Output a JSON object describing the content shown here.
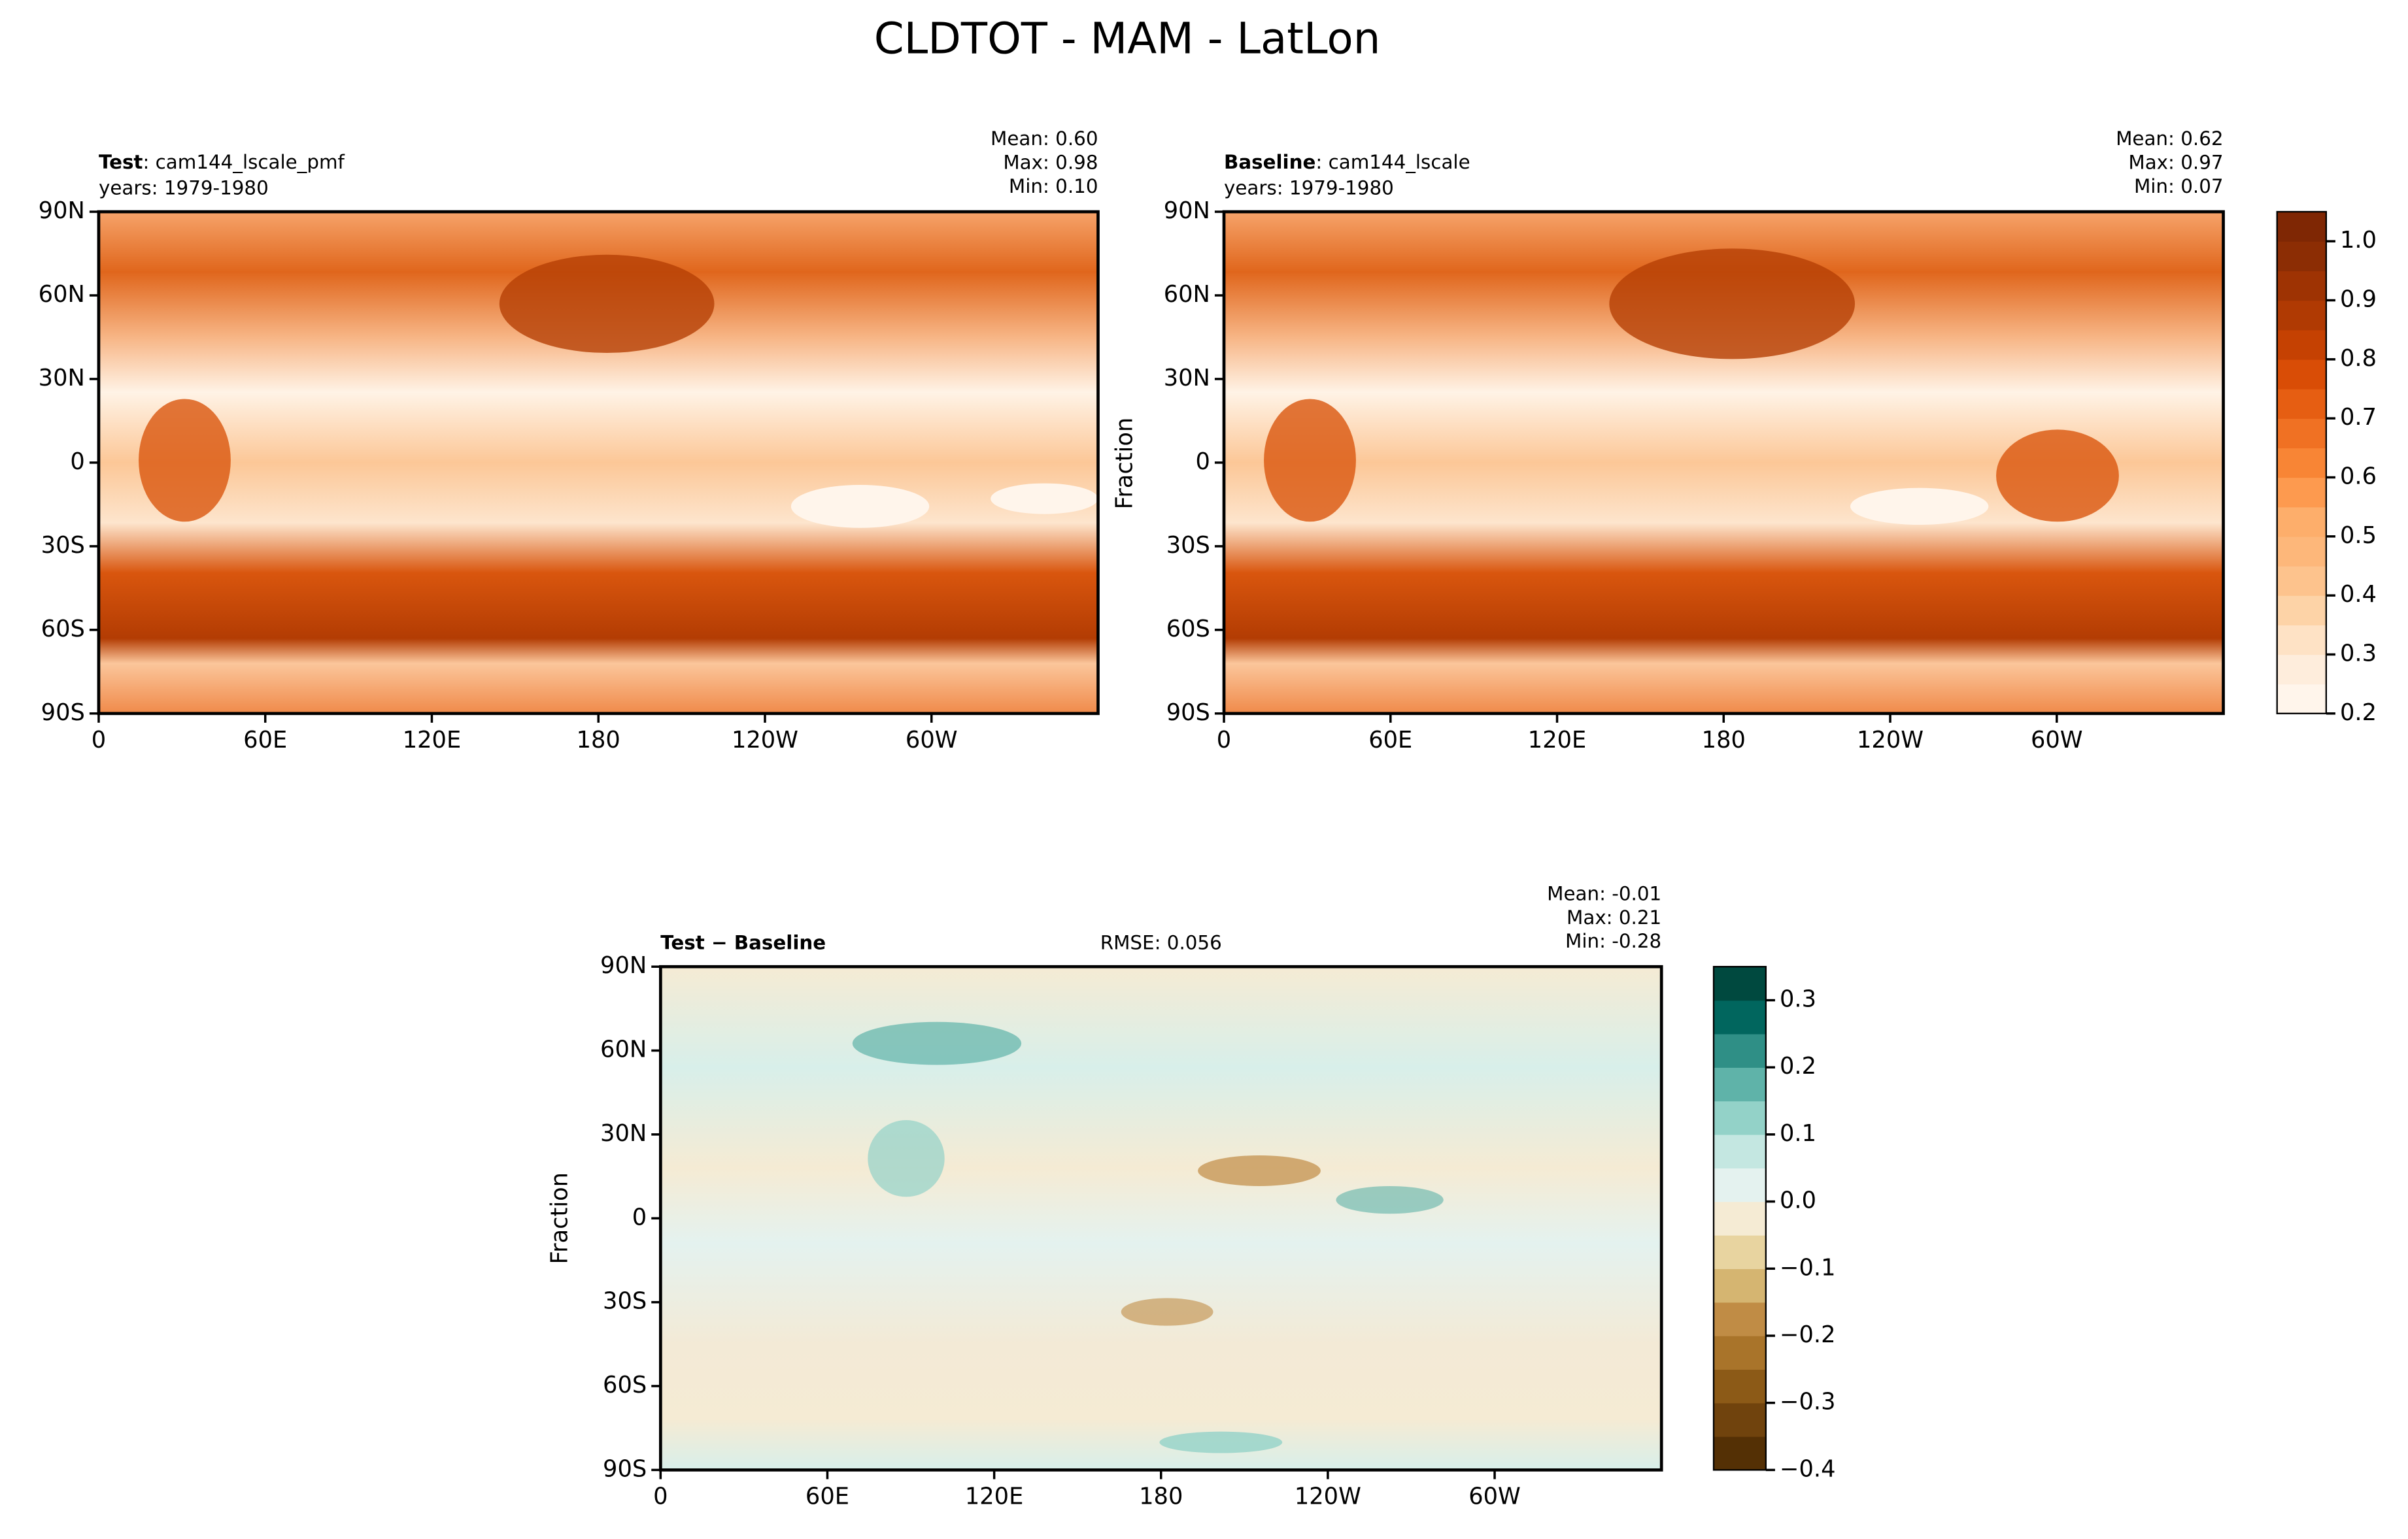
{
  "title": "CLDTOT - MAM - LatLon",
  "panels": [
    {
      "name": "Test",
      "run": ": cam144_lscale_pmf",
      "years": "years: 1979-1980",
      "stats": [
        "Mean:  0.60",
        "Max:  0.98",
        "Min:  0.10"
      ]
    },
    {
      "name": "Baseline",
      "run": ": cam144_lscale",
      "years": "years: 1979-1980",
      "stats": [
        "Mean:  0.62",
        "Max:  0.97",
        "Min:  0.07"
      ]
    }
  ],
  "diff": {
    "name": "Test − Baseline",
    "rmse": "RMSE: 0.056",
    "stats": [
      "Mean: -0.01",
      "Max:  0.21",
      "Min: -0.28"
    ]
  },
  "lat_ticks": [
    "90N",
    "60N",
    "30N",
    "0",
    "30S",
    "60S",
    "90S"
  ],
  "lon_ticks": [
    "0",
    "60E",
    "120E",
    "180",
    "120W",
    "60W"
  ],
  "colorbar1": {
    "label": "Fraction",
    "lim": [
      0.2,
      1.05
    ],
    "ticks": [
      {
        "value": 0.2,
        "label": "0.2"
      },
      {
        "value": 0.3,
        "label": "0.3"
      },
      {
        "value": 0.4,
        "label": "0.4"
      },
      {
        "value": 0.5,
        "label": "0.5"
      },
      {
        "value": 0.6,
        "label": "0.6"
      },
      {
        "value": 0.7,
        "label": "0.7"
      },
      {
        "value": 0.8,
        "label": "0.8"
      },
      {
        "value": 0.9,
        "label": "0.9"
      },
      {
        "value": 1,
        "label": "1.0"
      }
    ],
    "colors": [
      "#fff5eb",
      "#feeddc",
      "#fee2c5",
      "#fdd3a7",
      "#fdc38d",
      "#fdb77a",
      "#fdae6b",
      "#fd9a4f",
      "#f88535",
      "#f07123",
      "#e65e12",
      "#d94d06",
      "#c54102",
      "#b03a03",
      "#9e3303",
      "#8c2d04",
      "#7f2704"
    ]
  },
  "colorbar2": {
    "label": "Fraction",
    "lim": [
      -0.4,
      0.35
    ],
    "ticks": [
      {
        "value": -0.4,
        "label": "−0.4"
      },
      {
        "value": -0.3,
        "label": "−0.3"
      },
      {
        "value": -0.2,
        "label": "−0.2"
      },
      {
        "value": -0.1,
        "label": "−0.1"
      },
      {
        "value": 0,
        "label": "0.0"
      },
      {
        "value": 0.1,
        "label": "0.1"
      },
      {
        "value": 0.2,
        "label": "0.2"
      },
      {
        "value": 0.3,
        "label": "0.3"
      }
    ],
    "colors": [
      "#543005",
      "#70430d",
      "#8c5a17",
      "#a9742a",
      "#c08c45",
      "#d5b571",
      "#e8d4a0",
      "#f5ebd4",
      "#e4f2ef",
      "#c4e7e1",
      "#93d2c8",
      "#5fb3a9",
      "#2f8f86",
      "#01665e",
      "#00493f"
    ]
  }
}
